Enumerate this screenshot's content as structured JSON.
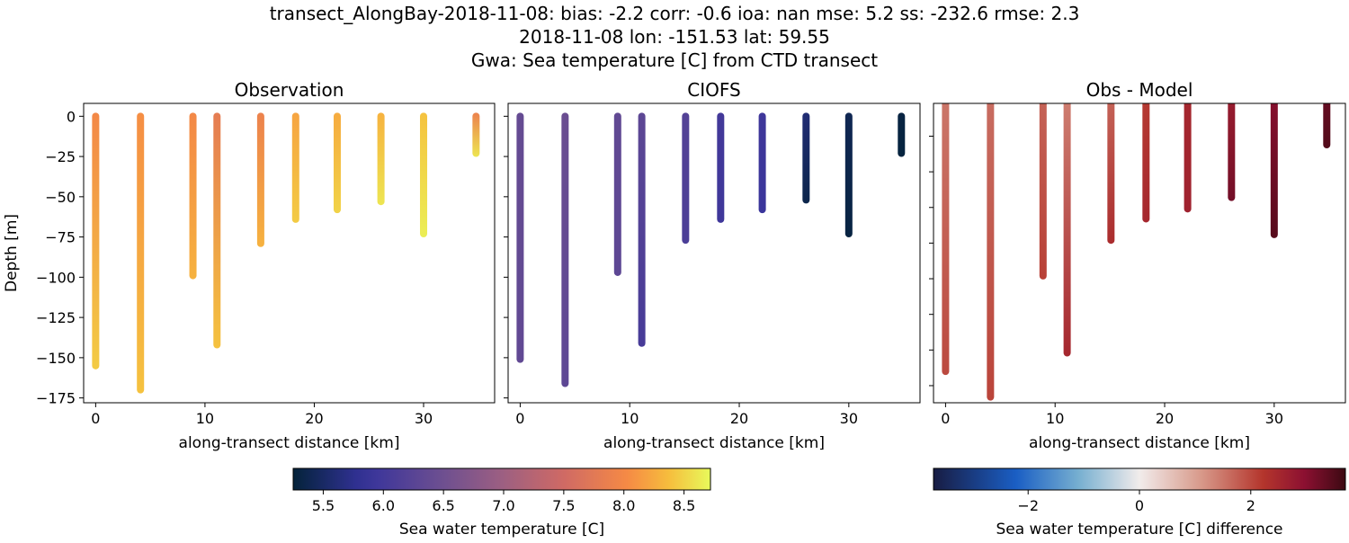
{
  "chart_data": {
    "title_lines": [
      "transect_AlongBay-2018-11-08: bias: -2.2  corr: -0.6  ioa: nan  mse: 5.2  ss: -232.6  rmse: 2.3",
      "2018-11-08 lon: -151.53 lat: 59.55",
      "Gwa: Sea temperature [C] from CTD transect"
    ],
    "type": "scatter",
    "panels": [
      {
        "title": "Observation",
        "xlabel": "along-transect distance [km]",
        "ylabel": "Depth [m]",
        "xlim": [
          -1.1,
          36.5
        ],
        "ylim": [
          -178,
          8
        ],
        "yticks": [
          0,
          -25,
          -50,
          -75,
          -100,
          -125,
          -150,
          -175
        ],
        "ytick_labels": true,
        "xticks": [
          0,
          10,
          20,
          30
        ],
        "colormap": "thermal",
        "casts": [
          {
            "x": 0,
            "depth": 155,
            "top": 8.0,
            "bottom": 8.45
          },
          {
            "x": 4.1,
            "depth": 170,
            "top": 8.05,
            "bottom": 8.4
          },
          {
            "x": 8.9,
            "depth": 99,
            "top": 8.0,
            "bottom": 8.3
          },
          {
            "x": 11.1,
            "depth": 142,
            "top": 7.8,
            "bottom": 8.4
          },
          {
            "x": 15.1,
            "depth": 79,
            "top": 7.9,
            "bottom": 8.3
          },
          {
            "x": 18.3,
            "depth": 64,
            "top": 8.2,
            "bottom": 8.45
          },
          {
            "x": 22.1,
            "depth": 58,
            "top": 8.25,
            "bottom": 8.5
          },
          {
            "x": 26.1,
            "depth": 53,
            "top": 8.3,
            "bottom": 8.6
          },
          {
            "x": 30.0,
            "depth": 73,
            "top": 8.4,
            "bottom": 8.65
          },
          {
            "x": 34.8,
            "depth": 23,
            "top": 7.9,
            "bottom": 8.6
          }
        ]
      },
      {
        "title": "CIOFS",
        "xlabel": "along-transect distance [km]",
        "ylabel": "",
        "xlim": [
          -1.1,
          36.5
        ],
        "ylim": [
          -178,
          8
        ],
        "yticks": [
          0,
          -25,
          -50,
          -75,
          -100,
          -125,
          -150,
          -175
        ],
        "ytick_labels": false,
        "xticks": [
          0,
          10,
          20,
          30
        ],
        "colormap": "thermal",
        "casts": [
          {
            "x": 0,
            "depth": 151,
            "top": 6.4,
            "bottom": 6.35
          },
          {
            "x": 4.1,
            "depth": 166,
            "top": 6.45,
            "bottom": 6.3
          },
          {
            "x": 8.9,
            "depth": 97,
            "top": 6.35,
            "bottom": 6.3
          },
          {
            "x": 11.1,
            "depth": 141,
            "top": 6.3,
            "bottom": 6.05
          },
          {
            "x": 15.1,
            "depth": 77,
            "top": 6.2,
            "bottom": 6.1
          },
          {
            "x": 18.3,
            "depth": 64,
            "top": 6.0,
            "bottom": 5.95
          },
          {
            "x": 22.1,
            "depth": 58,
            "top": 5.95,
            "bottom": 5.9
          },
          {
            "x": 26.1,
            "depth": 52,
            "top": 5.6,
            "bottom": 5.35
          },
          {
            "x": 30.0,
            "depth": 73,
            "top": 5.4,
            "bottom": 5.3
          },
          {
            "x": 34.8,
            "depth": 23,
            "top": 5.3,
            "bottom": 5.28
          }
        ]
      },
      {
        "title": "Obs - Model",
        "xlabel": "along-transect distance [km]",
        "ylabel": "",
        "xlim": [
          -1.1,
          36.5
        ],
        "ylim": [
          -187,
          23
        ],
        "yticks": [
          0,
          -25,
          -50,
          -75,
          -100,
          -125,
          -150,
          -175
        ],
        "ytick_labels": false,
        "xticks": [
          0,
          10,
          20,
          30
        ],
        "colormap": "balance",
        "casts": [
          {
            "x": 0,
            "depth": 165,
            "top": 1.5,
            "bottom": 2.0
          },
          {
            "x": 4.1,
            "depth": 183,
            "top": 1.6,
            "bottom": 2.05
          },
          {
            "x": 8.9,
            "depth": 98,
            "top": 1.7,
            "bottom": 2.1
          },
          {
            "x": 11.1,
            "depth": 152,
            "top": 1.4,
            "bottom": 2.5
          },
          {
            "x": 15.1,
            "depth": 73,
            "top": 1.7,
            "bottom": 2.4
          },
          {
            "x": 18.3,
            "depth": 58,
            "top": 2.15,
            "bottom": 2.5
          },
          {
            "x": 22.1,
            "depth": 51,
            "top": 2.5,
            "bottom": 2.6
          },
          {
            "x": 26.1,
            "depth": 43,
            "top": 2.7,
            "bottom": 3.2
          },
          {
            "x": 30.0,
            "depth": 69,
            "top": 3.0,
            "bottom": 3.45
          },
          {
            "x": 34.8,
            "depth": 6,
            "top": 3.3,
            "bottom": 3.5
          }
        ]
      }
    ],
    "colorbars": [
      {
        "label": "Sea water temperature [C]",
        "range": [
          5.25,
          8.72
        ],
        "ticks": [
          5.5,
          6.0,
          6.5,
          7.0,
          7.5,
          8.0,
          8.5
        ],
        "tick_labels": [
          "5.5",
          "6.0",
          "6.5",
          "7.0",
          "7.5",
          "8.0",
          "8.5"
        ],
        "colormap": "thermal"
      },
      {
        "label": "Sea water temperature [C] difference",
        "range": [
          -3.7,
          3.7
        ],
        "ticks": [
          -2,
          0,
          2
        ],
        "tick_labels": [
          "−2",
          "0",
          "2"
        ],
        "colormap": "balance"
      }
    ]
  }
}
